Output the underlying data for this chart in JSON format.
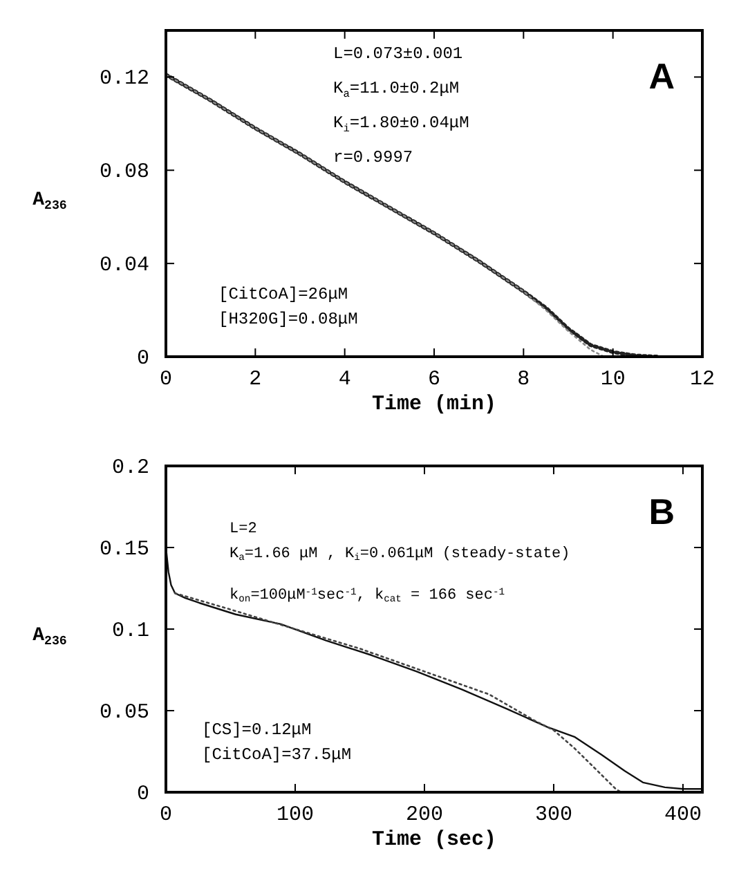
{
  "chart_data": [
    {
      "type": "line",
      "title": "A",
      "xlabel": "Time  (min)",
      "ylabel": "A$_{236}$",
      "annotations": [
        "L=0.073±0.001",
        "K$_{a}$=11.0±0.2μM",
        "K$_{i}$=1.80±0.04μM",
        "r=0.9997",
        "[CitCoA]=26μM",
        "[H320G]=0.08μM"
      ],
      "series": [
        {
          "color": "#222222",
          "line_style": "dotted",
          "x": [
            0,
            1,
            2,
            3,
            4,
            5,
            6,
            7,
            8,
            8.5,
            9,
            9.5,
            10,
            10.5,
            11
          ],
          "values": [
            0.121,
            0.11,
            0.098,
            0.087,
            0.075,
            0.064,
            0.053,
            0.041,
            0.028,
            0.021,
            0.012,
            0.005,
            0.002,
            0.0005,
            0
          ]
        },
        {
          "color": "#888888",
          "line_style": "dotted",
          "x": [
            0,
            1,
            2,
            3,
            4,
            5,
            6,
            7,
            8,
            8.5,
            9,
            9.5,
            9.8
          ],
          "values": [
            0.121,
            0.11,
            0.098,
            0.087,
            0.075,
            0.064,
            0.053,
            0.041,
            0.028,
            0.02,
            0.011,
            0.003,
            0
          ]
        }
      ],
      "xlim": [
        0,
        12
      ],
      "xticks": [
        0,
        2,
        4,
        6,
        8,
        10,
        12
      ],
      "ylim": [
        0,
        0.14
      ],
      "yticks": [
        0,
        0.04,
        0.08,
        0.12
      ],
      "grid": false
    },
    {
      "type": "line",
      "title": "B",
      "xlabel": "Time  (sec)",
      "ylabel": "A$_{236}$",
      "annotations": [
        "L=2",
        "K$_{a}$=1.66 μM , K$_{i}$=0.061μM (steady-state)",
        "k$_{on}$=100μM$^{-1}$sec$^{-1}$, k$_{cat}$ = 166 sec$^{-1}$",
        "[CS]=0.12μM",
        "[CitCoA]=37.5μM"
      ],
      "series": [
        {
          "color": "#111111",
          "line_style": "solid",
          "x": [
            0,
            2,
            4,
            7,
            15,
            26,
            54,
            89,
            124,
            159,
            194,
            229,
            264,
            295,
            316,
            337,
            355,
            369,
            386,
            400,
            414
          ],
          "values": [
            0.15,
            0.135,
            0.127,
            0.122,
            0.119,
            0.116,
            0.109,
            0.103,
            0.093,
            0.084,
            0.074,
            0.063,
            0.051,
            0.04,
            0.034,
            0.023,
            0.013,
            0.006,
            0.003,
            0.002,
            0.002
          ]
        },
        {
          "color": "#444444",
          "line_style": "dotted",
          "x": [
            7,
            50,
            100,
            150,
            200,
            250,
            285,
            300,
            316,
            334,
            348,
            352
          ],
          "values": [
            0.122,
            0.112,
            0.1,
            0.088,
            0.074,
            0.06,
            0.044,
            0.038,
            0.027,
            0.013,
            0.002,
            0
          ]
        }
      ],
      "xlim": [
        0,
        415
      ],
      "xticks": [
        0,
        100,
        200,
        300,
        400
      ],
      "ylim": [
        0,
        0.2
      ],
      "yticks": [
        0,
        0.05,
        0.1,
        0.15,
        0.2
      ],
      "grid": false
    }
  ]
}
